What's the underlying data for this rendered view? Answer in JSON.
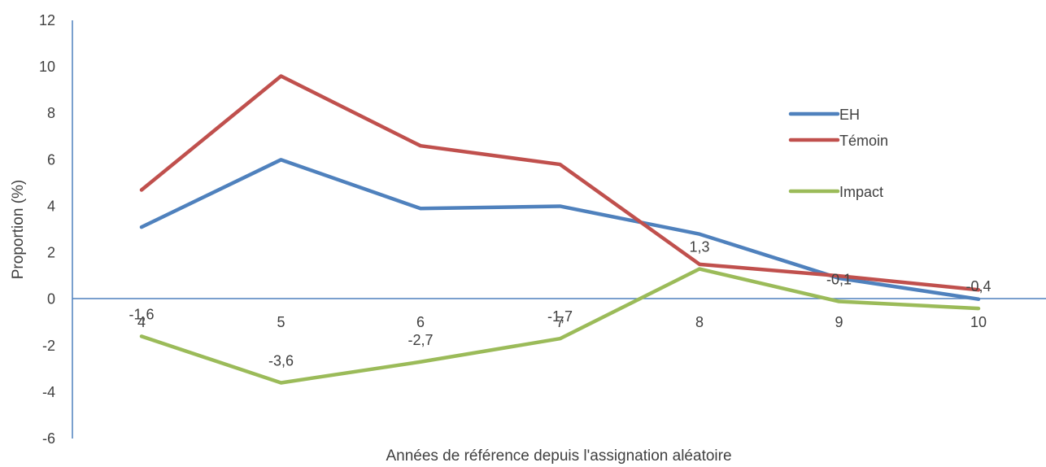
{
  "chart_data": {
    "type": "line",
    "categories": [
      "4",
      "5",
      "6",
      "7",
      "8",
      "9",
      "10"
    ],
    "series": [
      {
        "name": "EH",
        "color": "#4F81BD",
        "values": [
          3.1,
          6.0,
          3.9,
          4.0,
          2.8,
          0.9,
          0.0
        ]
      },
      {
        "name": "Témoin",
        "color": "#C0504D",
        "values": [
          4.7,
          9.6,
          6.6,
          5.8,
          1.5,
          1.0,
          0.4
        ]
      },
      {
        "name": "Impact",
        "color": "#9BBB59",
        "values": [
          -1.6,
          -3.6,
          -2.7,
          -1.7,
          1.3,
          -0.1,
          -0.4
        ],
        "data_labels": [
          "-1,6",
          "-3,6",
          "-2,7",
          "-1,7",
          "1,3",
          "-0,1",
          "-0,4"
        ]
      }
    ],
    "xlabel": "Années de référence depuis l'assignation aléatoire",
    "ylabel": "Proportion (%)",
    "ylim": [
      -6,
      12
    ],
    "yticks": [
      "-6",
      "-4",
      "-2",
      "0",
      "2",
      "4",
      "6",
      "8",
      "10",
      "12"
    ],
    "grid": false,
    "legend_position": "right"
  }
}
